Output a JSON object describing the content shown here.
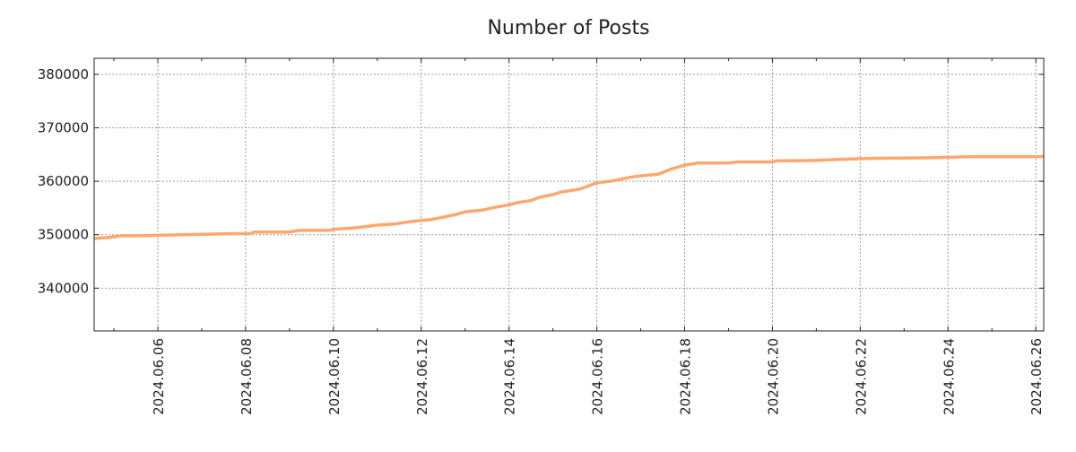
{
  "chart_data": {
    "type": "line",
    "title": "Number of Posts",
    "xlabel": "",
    "ylabel": "",
    "x_unit": "day of June 2024",
    "xlim": [
      4.55,
      26.18
    ],
    "ylim": [
      332000,
      383000
    ],
    "grid": true,
    "line_color": "#fca86f",
    "y_ticks": [
      340000,
      350000,
      360000,
      370000,
      380000
    ],
    "y_tick_labels": [
      "340000",
      "350000",
      "360000",
      "370000",
      "380000"
    ],
    "x_ticks": [
      6,
      8,
      10,
      12,
      14,
      16,
      18,
      20,
      22,
      24,
      26
    ],
    "x_tick_labels": [
      "2024.06.06",
      "2024.06.08",
      "2024.06.10",
      "2024.06.12",
      "2024.06.14",
      "2024.06.16",
      "2024.06.18",
      "2024.06.20",
      "2024.06.22",
      "2024.06.24",
      "2024.06.26"
    ],
    "series": [
      {
        "name": "Number of Posts",
        "x": [
          4.55,
          4.9,
          5.2,
          5.6,
          6.1,
          6.5,
          7.2,
          7.7,
          8.1,
          8.2,
          9.0,
          9.2,
          9.9,
          10.0,
          10.5,
          11.0,
          11.4,
          11.8,
          12.2,
          12.4,
          12.8,
          13.0,
          13.4,
          13.6,
          14.0,
          14.2,
          14.5,
          14.7,
          15.0,
          15.2,
          15.6,
          16.0,
          16.3,
          16.5,
          16.8,
          17.0,
          17.4,
          17.7,
          18.0,
          18.3,
          19.0,
          19.2,
          20.0,
          20.1,
          21.0,
          21.5,
          22.3,
          23.6,
          24.5,
          26.1,
          26.18
        ],
        "y": [
          349300,
          349500,
          349800,
          349800,
          349900,
          350000,
          350100,
          350200,
          350200,
          350500,
          350500,
          350800,
          350800,
          351000,
          351300,
          351800,
          352000,
          352500,
          352800,
          353100,
          353800,
          354300,
          354600,
          355000,
          355600,
          356000,
          356400,
          357000,
          357500,
          358000,
          358500,
          359700,
          360000,
          360300,
          360800,
          361000,
          361300,
          362300,
          363000,
          363400,
          363400,
          363600,
          363600,
          363800,
          363900,
          364100,
          364300,
          364400,
          364600,
          364600,
          364700
        ]
      }
    ]
  }
}
